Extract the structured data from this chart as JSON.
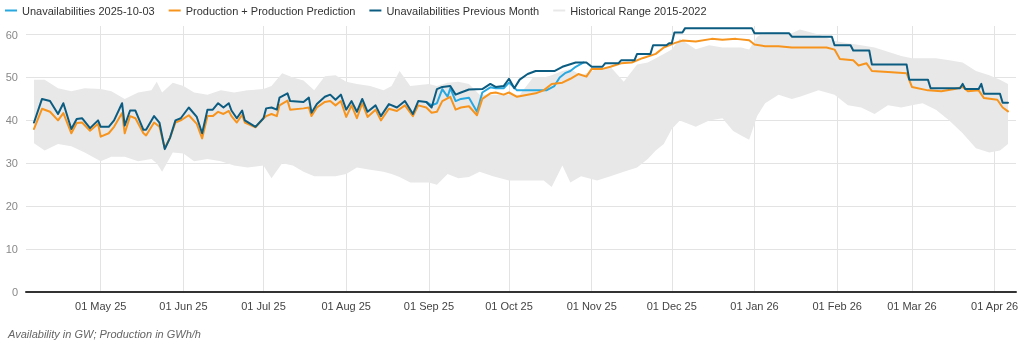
{
  "chart_data": {
    "type": "line",
    "legend": "top left",
    "grid": true,
    "marker": "none",
    "line_style": "solid",
    "xlim": [
      "2025-04-03",
      "2026-04-09"
    ],
    "ylim": [
      0,
      62
    ],
    "yticks": [
      0,
      10,
      20,
      30,
      40,
      50,
      60
    ],
    "xticks": [
      {
        "value": "2025-05-01",
        "label": "01 May 25"
      },
      {
        "value": "2025-06-01",
        "label": "01 Jun 25"
      },
      {
        "value": "2025-07-01",
        "label": "01 Jul 25"
      },
      {
        "value": "2025-08-01",
        "label": "01 Aug 25"
      },
      {
        "value": "2025-09-01",
        "label": "01 Sep 25"
      },
      {
        "value": "2025-10-01",
        "label": "01 Oct 25"
      },
      {
        "value": "2025-11-01",
        "label": "01 Nov 25"
      },
      {
        "value": "2025-12-01",
        "label": "01 Dec 25"
      },
      {
        "value": "2026-01-01",
        "label": "01 Jan 26"
      },
      {
        "value": "2026-02-01",
        "label": "01 Feb 26"
      },
      {
        "value": "2026-03-01",
        "label": "01 Mar 26"
      },
      {
        "value": "2026-04-01",
        "label": "01 Apr 26"
      }
    ],
    "annotations": [
      "Availability in GW; Production in GWh/h"
    ],
    "series": [
      {
        "name": "Unavailabilities 2025-10-03",
        "color": "#29a8e0",
        "x": [
          "2025-08-31",
          "2025-09-02",
          "2025-09-04",
          "2025-09-06",
          "2025-09-08",
          "2025-09-09",
          "2025-09-11",
          "2025-09-13",
          "2025-09-16",
          "2025-09-19",
          "2025-09-21",
          "2025-09-24",
          "2025-09-26",
          "2025-09-29",
          "2025-10-01",
          "2025-10-04",
          "2025-10-08",
          "2025-10-15",
          "2025-10-18",
          "2025-10-20",
          "2025-10-22",
          "2025-10-24",
          "2025-10-26",
          "2025-10-29"
        ],
        "values": [
          44.3,
          43.5,
          44,
          47.3,
          45.5,
          47.5,
          44.5,
          45,
          45.3,
          42,
          46.5,
          47.7,
          47.5,
          47.5,
          48.8,
          47,
          47,
          47,
          48,
          50,
          51,
          51.5,
          52.5,
          53.5
        ]
      },
      {
        "name": "Production + Production Prediction",
        "color": "#f7941d",
        "x": [
          "2025-04-06",
          "2025-04-09",
          "2025-04-12",
          "2025-04-15",
          "2025-04-17",
          "2025-04-20",
          "2025-04-22",
          "2025-04-24",
          "2025-04-27",
          "2025-04-30",
          "2025-05-01",
          "2025-05-04",
          "2025-05-06",
          "2025-05-09",
          "2025-05-10",
          "2025-05-12",
          "2025-05-14",
          "2025-05-17",
          "2025-05-18",
          "2025-05-21",
          "2025-05-23",
          "2025-05-25",
          "2025-05-27",
          "2025-05-29",
          "2025-05-31",
          "2025-06-03",
          "2025-06-06",
          "2025-06-08",
          "2025-06-10",
          "2025-06-12",
          "2025-06-14",
          "2025-06-16",
          "2025-06-18",
          "2025-06-19",
          "2025-06-21",
          "2025-06-23",
          "2025-06-24",
          "2025-06-28",
          "2025-07-01",
          "2025-07-02",
          "2025-07-04",
          "2025-07-06",
          "2025-07-07",
          "2025-07-10",
          "2025-07-11",
          "2025-07-16",
          "2025-07-18",
          "2025-07-19",
          "2025-07-21",
          "2025-07-24",
          "2025-07-26",
          "2025-07-28",
          "2025-07-30",
          "2025-08-01",
          "2025-08-03",
          "2025-08-05",
          "2025-08-07",
          "2025-08-09",
          "2025-08-12",
          "2025-08-14",
          "2025-08-17",
          "2025-08-20",
          "2025-08-23",
          "2025-08-26",
          "2025-08-28",
          "2025-08-31",
          "2025-09-02",
          "2025-09-04",
          "2025-09-06",
          "2025-09-09",
          "2025-09-11",
          "2025-09-13",
          "2025-09-16",
          "2025-09-19",
          "2025-09-21",
          "2025-09-24",
          "2025-09-26",
          "2025-09-29",
          "2025-10-01",
          "2025-10-04",
          "2025-10-08",
          "2025-10-11",
          "2025-10-14",
          "2025-10-17",
          "2025-10-21",
          "2025-10-24",
          "2025-10-27",
          "2025-10-30",
          "2025-11-01",
          "2025-11-05",
          "2025-11-08",
          "2025-11-12",
          "2025-11-16",
          "2025-11-20",
          "2025-11-25",
          "2025-11-28",
          "2025-12-02",
          "2025-12-05",
          "2025-12-10",
          "2025-12-16",
          "2025-12-20",
          "2025-12-25",
          "2025-12-30",
          "2026-01-01",
          "2026-01-05",
          "2026-01-10",
          "2026-01-15",
          "2026-01-20",
          "2026-01-28",
          "2026-01-31",
          "2026-02-02",
          "2026-02-07",
          "2026-02-09",
          "2026-02-12",
          "2026-02-14",
          "2026-02-20",
          "2026-02-27",
          "2026-03-01",
          "2026-03-07",
          "2026-03-12",
          "2026-03-17",
          "2026-03-20",
          "2026-03-22",
          "2026-03-26",
          "2026-03-28",
          "2026-04-02",
          "2026-04-04",
          "2026-04-06"
        ],
        "values": [
          38,
          42.7,
          42,
          40,
          41.7,
          37,
          39.4,
          39.5,
          37.6,
          39.2,
          36.2,
          37,
          38.5,
          41.7,
          37,
          41,
          40.5,
          37,
          36.5,
          39.5,
          38.5,
          33.5,
          36,
          39.5,
          40,
          41.2,
          39.2,
          35.8,
          41,
          41,
          42,
          41.5,
          42.2,
          41,
          39.5,
          41.3,
          39.5,
          38.4,
          40.5,
          41,
          41.5,
          41,
          43.5,
          44.6,
          42.5,
          42.8,
          43,
          41,
          43,
          44.3,
          44.5,
          43.5,
          44.5,
          40.8,
          43.5,
          40.5,
          44,
          40.8,
          42.5,
          40,
          42.7,
          42.2,
          43.5,
          41,
          43.5,
          43,
          41.8,
          42,
          44.5,
          45.5,
          42.5,
          43,
          43.3,
          41.2,
          45,
          46.3,
          46.5,
          46,
          46.5,
          45.5,
          46,
          46.3,
          47,
          48.5,
          48.8,
          49.7,
          50.8,
          50.2,
          52,
          52,
          52.5,
          53.3,
          53.5,
          54.5,
          55.5,
          57,
          58,
          58.6,
          58.4,
          59,
          58.8,
          59,
          58.7,
          57.7,
          57.3,
          57.3,
          57,
          57,
          57,
          56.5,
          54.3,
          54,
          52.8,
          53.3,
          51.5,
          51.3,
          51,
          47.8,
          47,
          46.8,
          47.3,
          47.8,
          46.8,
          47,
          45.2,
          44.8,
          43,
          42.1
        ]
      },
      {
        "name": "Unavailabilities Previous Month",
        "color": "#0b5c80",
        "x": [
          "2025-04-06",
          "2025-04-09",
          "2025-04-12",
          "2025-04-15",
          "2025-04-17",
          "2025-04-20",
          "2025-04-22",
          "2025-04-24",
          "2025-04-27",
          "2025-04-30",
          "2025-05-01",
          "2025-05-04",
          "2025-05-06",
          "2025-05-09",
          "2025-05-10",
          "2025-05-12",
          "2025-05-14",
          "2025-05-17",
          "2025-05-18",
          "2025-05-21",
          "2025-05-23",
          "2025-05-25",
          "2025-05-27",
          "2025-05-29",
          "2025-05-31",
          "2025-06-03",
          "2025-06-06",
          "2025-06-08",
          "2025-06-10",
          "2025-06-12",
          "2025-06-14",
          "2025-06-16",
          "2025-06-18",
          "2025-06-19",
          "2025-06-21",
          "2025-06-23",
          "2025-06-24",
          "2025-06-28",
          "2025-07-01",
          "2025-07-02",
          "2025-07-04",
          "2025-07-06",
          "2025-07-07",
          "2025-07-10",
          "2025-07-11",
          "2025-07-16",
          "2025-07-18",
          "2025-07-19",
          "2025-07-21",
          "2025-07-24",
          "2025-07-26",
          "2025-07-28",
          "2025-07-30",
          "2025-08-01",
          "2025-08-03",
          "2025-08-05",
          "2025-08-07",
          "2025-08-09",
          "2025-08-12",
          "2025-08-14",
          "2025-08-17",
          "2025-08-20",
          "2025-08-23",
          "2025-08-26",
          "2025-08-28",
          "2025-08-31",
          "2025-09-02",
          "2025-09-04",
          "2025-09-06",
          "2025-09-09",
          "2025-09-11",
          "2025-09-13",
          "2025-09-16",
          "2025-09-21",
          "2025-09-24",
          "2025-09-26",
          "2025-09-29",
          "2025-10-01",
          "2025-10-03",
          "2025-10-05",
          "2025-10-08",
          "2025-10-11",
          "2025-10-18",
          "2025-10-21",
          "2025-10-26",
          "2025-10-30",
          "2025-11-01",
          "2025-11-05",
          "2025-11-06",
          "2025-11-11",
          "2025-11-12",
          "2025-11-17",
          "2025-11-18",
          "2025-11-23",
          "2025-11-24",
          "2025-11-29",
          "2025-11-30",
          "2025-12-01",
          "2025-12-02",
          "2025-12-05",
          "2025-12-06",
          "2025-12-31",
          "2026-01-01",
          "2026-01-14",
          "2026-01-15",
          "2026-01-30",
          "2026-01-31",
          "2026-02-06",
          "2026-02-07",
          "2026-02-13",
          "2026-02-14",
          "2026-02-27",
          "2026-02-28",
          "2026-03-07",
          "2026-03-08",
          "2026-03-19",
          "2026-03-20",
          "2026-03-21",
          "2026-03-26",
          "2026-03-27",
          "2026-03-28",
          "2026-04-03",
          "2026-04-04",
          "2026-04-06"
        ],
        "values": [
          39.5,
          45,
          44.5,
          41.5,
          44,
          38,
          40.3,
          40.5,
          38.2,
          40,
          38.5,
          38.5,
          40,
          44,
          38.8,
          42.3,
          42.3,
          37.8,
          37.8,
          41,
          39.5,
          33.3,
          36,
          40,
          40.5,
          43,
          40.8,
          37,
          42.5,
          42.5,
          44,
          43,
          44,
          42.3,
          40.5,
          42.3,
          40,
          38.5,
          40.5,
          42.8,
          43,
          42.5,
          45.3,
          46.3,
          44.5,
          44.3,
          45.3,
          41.8,
          43.8,
          45.5,
          46,
          44.8,
          46,
          42.5,
          44.5,
          42,
          45,
          42,
          43.5,
          41,
          43.8,
          43,
          44.5,
          41.5,
          44.5,
          44.3,
          43,
          47.3,
          47.8,
          48,
          46,
          46.5,
          47.2,
          47.3,
          48.5,
          47.8,
          48,
          49.7,
          47.5,
          49.5,
          50.8,
          51.5,
          51.5,
          52.5,
          53.5,
          53.5,
          52.5,
          52.5,
          53.3,
          53.3,
          54,
          54,
          55.5,
          55.5,
          57.5,
          57.5,
          58,
          58,
          60.5,
          60.5,
          61.5,
          61.5,
          60.3,
          60.3,
          59.5,
          59.5,
          57.5,
          57.5,
          56.3,
          56.3,
          53,
          53,
          49.5,
          49.5,
          47.5,
          47.5,
          48.5,
          47.3,
          47.3,
          48.5,
          46.2,
          46.2,
          44.1,
          44.1
        ]
      },
      {
        "name": "Historical Range 2015-2022",
        "type": "line",
        "color": "#e8e8e8",
        "values": [
          null,
          null,
          null,
          null,
          null,
          null,
          null,
          null,
          null,
          null,
          null,
          null,
          null,
          null,
          null,
          null,
          null,
          null,
          null,
          null,
          null,
          null,
          null,
          null,
          null,
          null,
          null,
          null,
          null,
          null,
          null,
          null,
          null,
          null,
          null,
          null,
          null,
          null,
          null,
          null,
          null,
          null,
          null,
          null,
          null,
          null,
          null,
          null,
          null,
          null,
          null,
          null,
          null,
          null,
          null,
          null,
          null,
          null,
          null,
          null,
          null,
          null,
          null,
          null,
          null,
          null,
          null,
          null,
          null,
          null,
          null,
          null,
          null,
          null,
          null,
          null,
          null,
          null,
          null,
          null,
          null,
          null,
          null,
          null,
          null
        ],
        "x": [
          "2025-04-06",
          "2025-04-10",
          "2025-04-15",
          "2025-04-20",
          "2025-04-25",
          "2025-05-01",
          "2025-05-05",
          "2025-05-10",
          "2025-05-15",
          "2025-05-20",
          "2025-05-22",
          "2025-05-24",
          "2025-05-28",
          "2025-06-01",
          "2025-06-05",
          "2025-06-10",
          "2025-06-15",
          "2025-06-20",
          "2025-06-25",
          "2025-07-01",
          "2025-07-04",
          "2025-07-08",
          "2025-07-12",
          "2025-07-16",
          "2025-07-20",
          "2025-07-24",
          "2025-07-28",
          "2025-08-01",
          "2025-08-05",
          "2025-08-10",
          "2025-08-15",
          "2025-08-18",
          "2025-08-21",
          "2025-08-25",
          "2025-09-01",
          "2025-09-04",
          "2025-09-08",
          "2025-09-12",
          "2025-09-16",
          "2025-09-20",
          "2025-09-25",
          "2025-10-01",
          "2025-10-05",
          "2025-10-10",
          "2025-10-14",
          "2025-10-17",
          "2025-10-21",
          "2025-10-24",
          "2025-10-28",
          "2025-11-03",
          "2025-11-08",
          "2025-11-13",
          "2025-11-18",
          "2025-11-22",
          "2025-11-25",
          "2025-11-28",
          "2025-12-01",
          "2025-12-04",
          "2025-12-10",
          "2025-12-15",
          "2025-12-20",
          "2025-12-24",
          "2025-12-27",
          "2025-12-30",
          "2026-01-02",
          "2026-01-05",
          "2026-01-10",
          "2026-01-15",
          "2026-01-18",
          "2026-01-25",
          "2026-01-31",
          "2026-02-05",
          "2026-02-10",
          "2026-02-15",
          "2026-02-20",
          "2026-02-25",
          "2026-03-01",
          "2026-03-05",
          "2026-03-10",
          "2026-03-15",
          "2026-03-20",
          "2026-03-25",
          "2026-03-30",
          "2026-04-03",
          "2026-04-06"
        ],
        "upper": [
          49.5,
          49.5,
          47.5,
          46.8,
          47.5,
          47.3,
          46.8,
          45,
          46.5,
          47,
          49,
          46.5,
          48.8,
          48,
          46.5,
          46,
          47,
          46.5,
          47,
          47.3,
          48,
          51,
          50,
          49.3,
          47,
          50.3,
          50.5,
          49,
          48.5,
          48,
          47,
          48,
          51.5,
          48,
          48.5,
          48,
          48.8,
          49,
          48.5,
          46,
          46,
          46,
          46,
          50,
          50,
          50.5,
          51.5,
          52,
          50.5,
          52,
          52.5,
          49,
          53,
          53.5,
          54.5,
          55.5,
          56.5,
          59,
          56.6,
          57.5,
          57,
          57,
          57,
          56.5,
          59.5,
          60.5,
          60.5,
          60.3,
          61.2,
          60,
          58.5,
          58,
          57.5,
          57,
          56,
          55,
          54.5,
          54.5,
          54.5,
          54,
          53.5,
          51.5,
          50.5,
          49.5,
          48.5
        ],
        "lower": [
          34.7,
          33,
          34.5,
          34,
          32.5,
          30.5,
          31.5,
          31.5,
          30.5,
          31,
          30,
          28,
          32.5,
          32.3,
          30.5,
          31,
          30.5,
          29.5,
          29,
          29.5,
          26.5,
          30,
          29.5,
          28,
          27,
          27,
          27,
          27.5,
          29,
          28.5,
          28,
          27.5,
          26.8,
          25.5,
          25.5,
          25,
          27.5,
          26.5,
          26.8,
          28,
          27,
          26,
          26,
          26,
          26,
          24.5,
          29.5,
          25.5,
          27,
          26,
          27,
          28,
          29,
          31,
          33,
          34.5,
          38,
          40,
          38.5,
          40,
          40.5,
          37.5,
          36.5,
          35.5,
          41,
          44,
          46,
          45,
          45.5,
          47,
          46,
          43.5,
          43,
          41.5,
          43.5,
          43,
          43.5,
          44,
          42.5,
          40,
          37,
          33.5,
          32.5,
          33,
          34.5
        ]
      }
    ]
  }
}
